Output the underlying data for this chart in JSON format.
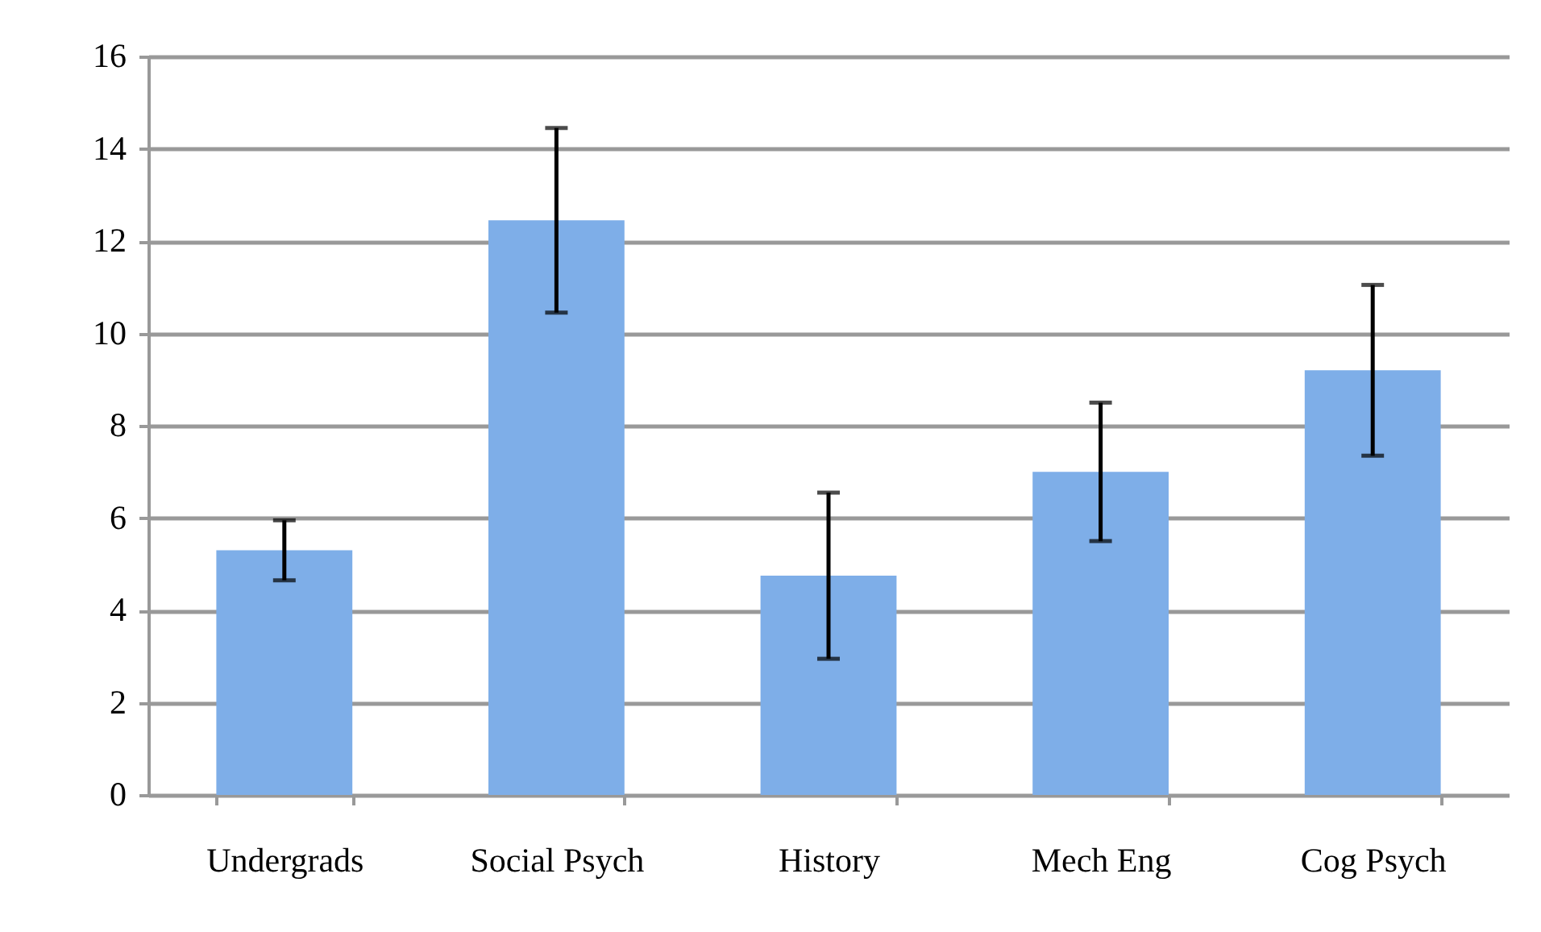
{
  "chart_data": {
    "type": "bar",
    "categories": [
      "Undergrads",
      "Social Psych",
      "History",
      "Mech Eng",
      "Cog Psych"
    ],
    "values": [
      5.3,
      12.45,
      4.75,
      7.0,
      9.2
    ],
    "errors": [
      0.65,
      2.0,
      1.8,
      1.5,
      1.85
    ],
    "color": "#7eaee8",
    "ylim": [
      0,
      16
    ],
    "yticks": [
      0,
      2,
      4,
      6,
      8,
      10,
      12,
      14,
      16
    ],
    "grid": "y"
  }
}
